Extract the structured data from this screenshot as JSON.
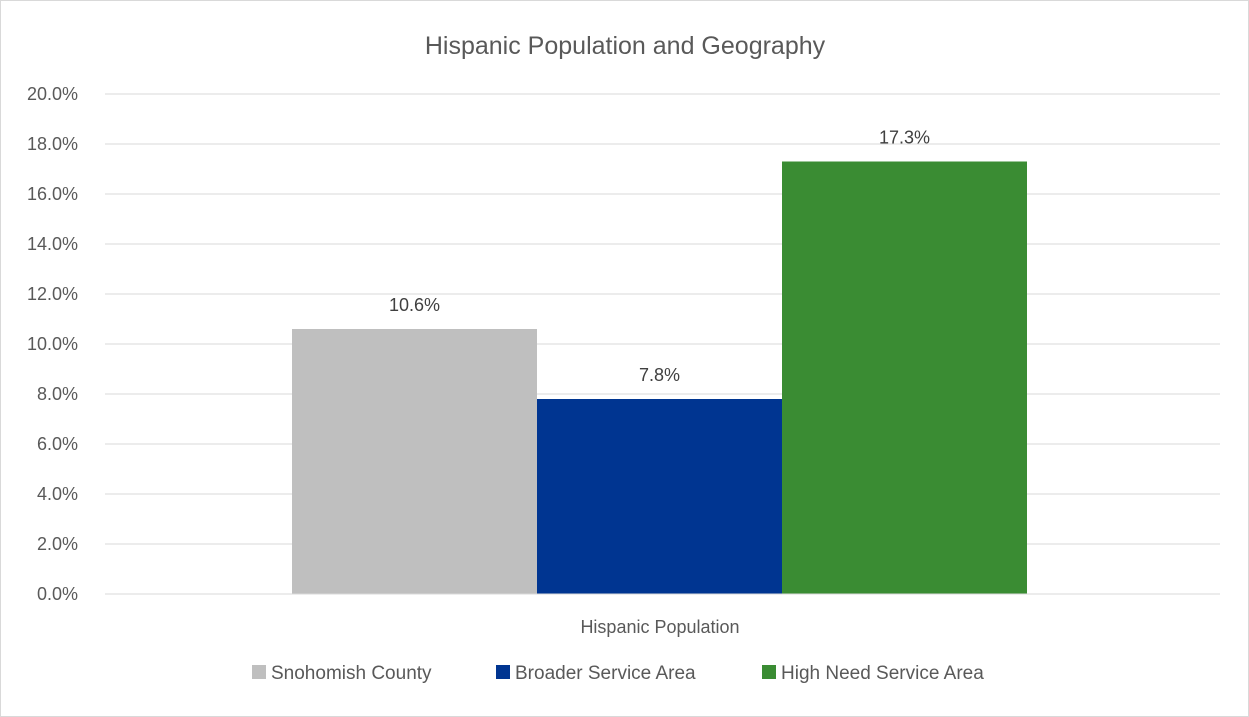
{
  "chart_data": {
    "type": "bar",
    "title": "Hispanic Population and Geography",
    "categories": [
      "Hispanic Population"
    ],
    "series": [
      {
        "name": "Snohomish County",
        "values": [
          10.6
        ],
        "color": "#bfbfbf",
        "label": "10.6%"
      },
      {
        "name": "Broader Service Area",
        "values": [
          7.8
        ],
        "color": "#003591",
        "label": "7.8%"
      },
      {
        "name": "High Need Service Area",
        "values": [
          17.3
        ],
        "color": "#3a8c33",
        "label": "17.3%"
      }
    ],
    "yticks": [
      "0.0%",
      "2.0%",
      "4.0%",
      "6.0%",
      "8.0%",
      "10.0%",
      "12.0%",
      "14.0%",
      "16.0%",
      "18.0%",
      "20.0%"
    ],
    "ylim": [
      0,
      20
    ],
    "grid": true,
    "legend_position": "bottom",
    "xlabel": "",
    "ylabel": ""
  }
}
